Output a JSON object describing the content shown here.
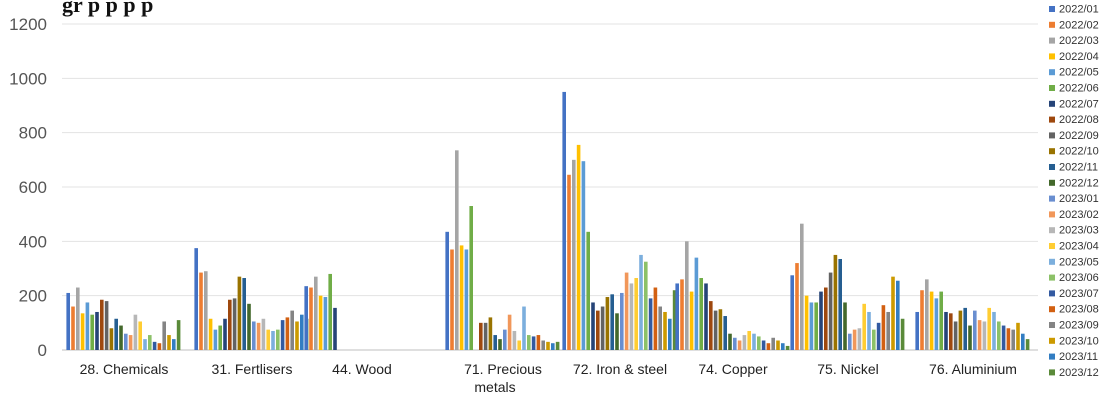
{
  "chart_data": {
    "type": "bar",
    "title": "",
    "xlabel": "",
    "ylabel": "",
    "ylim": [
      0,
      1200
    ],
    "yticks": [
      0,
      200,
      400,
      600,
      800,
      1000,
      1200
    ],
    "grid": true,
    "legend_position": "right",
    "categories": [
      "28. Chemicals",
      "31. Fertlisers",
      "44. Wood",
      "71. Precious metals",
      "72. Iron & steel",
      "74. Copper",
      "75. Nickel",
      "76. Aluminium"
    ],
    "series_colors": [
      "#4472c4",
      "#ed7d31",
      "#a5a5a5",
      "#ffc000",
      "#5b9bd5",
      "#70ad47",
      "#264478",
      "#9e480e",
      "#636363",
      "#997300",
      "#255e91",
      "#43682b",
      "#698ed0",
      "#f1975a",
      "#b7b7b7",
      "#ffcd33",
      "#7cafdd",
      "#8cc168",
      "#335aa1",
      "#d26012",
      "#848484",
      "#cc9a00",
      "#327dc2",
      "#5a8a39"
    ],
    "series": [
      {
        "name": "2022/01",
        "values": [
          210,
          375,
          235,
          435,
          950,
          245,
          275,
          140
        ]
      },
      {
        "name": "2022/02",
        "values": [
          160,
          285,
          230,
          370,
          645,
          260,
          320,
          220
        ]
      },
      {
        "name": "2022/03",
        "values": [
          230,
          290,
          270,
          735,
          700,
          400,
          465,
          260
        ]
      },
      {
        "name": "2022/04",
        "values": [
          135,
          115,
          200,
          385,
          755,
          215,
          200,
          215
        ]
      },
      {
        "name": "2022/05",
        "values": [
          175,
          75,
          195,
          370,
          695,
          340,
          175,
          190
        ]
      },
      {
        "name": "2022/06",
        "values": [
          130,
          90,
          280,
          530,
          435,
          265,
          175,
          215
        ]
      },
      {
        "name": "2022/07",
        "values": [
          140,
          115,
          155,
          null,
          175,
          245,
          215,
          140
        ]
      },
      {
        "name": "2022/08",
        "values": [
          185,
          185,
          null,
          100,
          145,
          180,
          230,
          135
        ]
      },
      {
        "name": "2022/09",
        "values": [
          180,
          190,
          null,
          100,
          160,
          145,
          285,
          105
        ]
      },
      {
        "name": "2022/10",
        "values": [
          80,
          270,
          null,
          120,
          195,
          150,
          350,
          145
        ]
      },
      {
        "name": "2022/11",
        "values": [
          115,
          265,
          null,
          55,
          205,
          125,
          335,
          155
        ]
      },
      {
        "name": "2022/12",
        "values": [
          90,
          170,
          null,
          40,
          135,
          60,
          175,
          90
        ]
      },
      {
        "name": "2023/01",
        "values": [
          60,
          105,
          null,
          75,
          210,
          45,
          60,
          145
        ]
      },
      {
        "name": "2023/02",
        "values": [
          55,
          100,
          null,
          130,
          285,
          35,
          75,
          110
        ]
      },
      {
        "name": "2023/03",
        "values": [
          130,
          115,
          null,
          70,
          245,
          55,
          80,
          105
        ]
      },
      {
        "name": "2023/04",
        "values": [
          105,
          75,
          null,
          35,
          265,
          70,
          170,
          155
        ]
      },
      {
        "name": "2023/05",
        "values": [
          40,
          70,
          null,
          160,
          350,
          60,
          140,
          140
        ]
      },
      {
        "name": "2023/06",
        "values": [
          55,
          75,
          null,
          55,
          325,
          50,
          75,
          105
        ]
      },
      {
        "name": "2023/07",
        "values": [
          30,
          110,
          null,
          50,
          190,
          35,
          100,
          90
        ]
      },
      {
        "name": "2023/08",
        "values": [
          25,
          120,
          null,
          55,
          230,
          25,
          165,
          80
        ]
      },
      {
        "name": "2023/09",
        "values": [
          105,
          145,
          null,
          35,
          160,
          45,
          140,
          75
        ]
      },
      {
        "name": "2023/10",
        "values": [
          55,
          105,
          null,
          30,
          140,
          35,
          270,
          100
        ]
      },
      {
        "name": "2023/11",
        "values": [
          40,
          130,
          null,
          25,
          115,
          25,
          255,
          60
        ]
      },
      {
        "name": "2023/12",
        "values": [
          110,
          115,
          null,
          30,
          220,
          15,
          115,
          40
        ]
      }
    ],
    "cut_off_title": "gr                p                  p                        p                  p"
  }
}
